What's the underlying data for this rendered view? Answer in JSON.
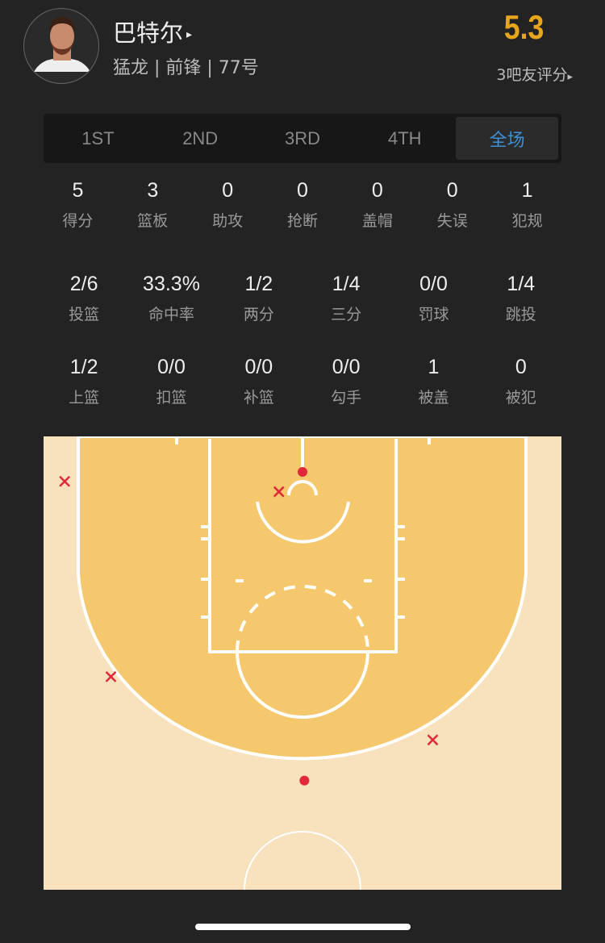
{
  "player": {
    "name": "巴特尔",
    "name_arrow": "▸",
    "info": "猛龙 | 前锋 | 77号",
    "score": "5.3",
    "rating_text": "3吧友评分",
    "rating_arrow": "▸"
  },
  "tabs": [
    {
      "label": "1ST"
    },
    {
      "label": "2ND"
    },
    {
      "label": "3RD"
    },
    {
      "label": "4TH"
    },
    {
      "label": "全场",
      "active": true
    }
  ],
  "stats_row1": [
    {
      "v": "5",
      "l": "得分"
    },
    {
      "v": "3",
      "l": "篮板"
    },
    {
      "v": "0",
      "l": "助攻"
    },
    {
      "v": "0",
      "l": "抢断"
    },
    {
      "v": "0",
      "l": "盖帽"
    },
    {
      "v": "0",
      "l": "失误"
    },
    {
      "v": "1",
      "l": "犯规"
    }
  ],
  "stats_row2": [
    {
      "v": "2/6",
      "l": "投篮"
    },
    {
      "v": "33.3%",
      "l": "命中率"
    },
    {
      "v": "1/2",
      "l": "两分"
    },
    {
      "v": "1/4",
      "l": "三分"
    },
    {
      "v": "0/0",
      "l": "罚球"
    },
    {
      "v": "1/4",
      "l": "跳投"
    }
  ],
  "stats_row3": [
    {
      "v": "1/2",
      "l": "上篮"
    },
    {
      "v": "0/0",
      "l": "扣篮"
    },
    {
      "v": "0/0",
      "l": "补篮"
    },
    {
      "v": "0/0",
      "l": "勾手"
    },
    {
      "v": "1",
      "l": "被盖"
    },
    {
      "v": "0",
      "l": "被犯"
    }
  ],
  "colors": {
    "accent": "#3d8fd6",
    "score": "#e6a51b",
    "paint": "#f5c86e",
    "floor": "#f8e1bd",
    "shot": "#e0283a"
  },
  "chart_data": {
    "type": "scatter",
    "units": "feet from basket",
    "shots": [
      {
        "x": -25.2,
        "y": 1.0,
        "made": false
      },
      {
        "x": -2.5,
        "y": 2.1,
        "made": false
      },
      {
        "x": -20.3,
        "y": 21.7,
        "made": false
      },
      {
        "x": 13.8,
        "y": 28.4,
        "made": false
      },
      {
        "x": 0,
        "y": 0,
        "made": true
      },
      {
        "x": 0.2,
        "y": 32.7,
        "made": true
      }
    ]
  }
}
